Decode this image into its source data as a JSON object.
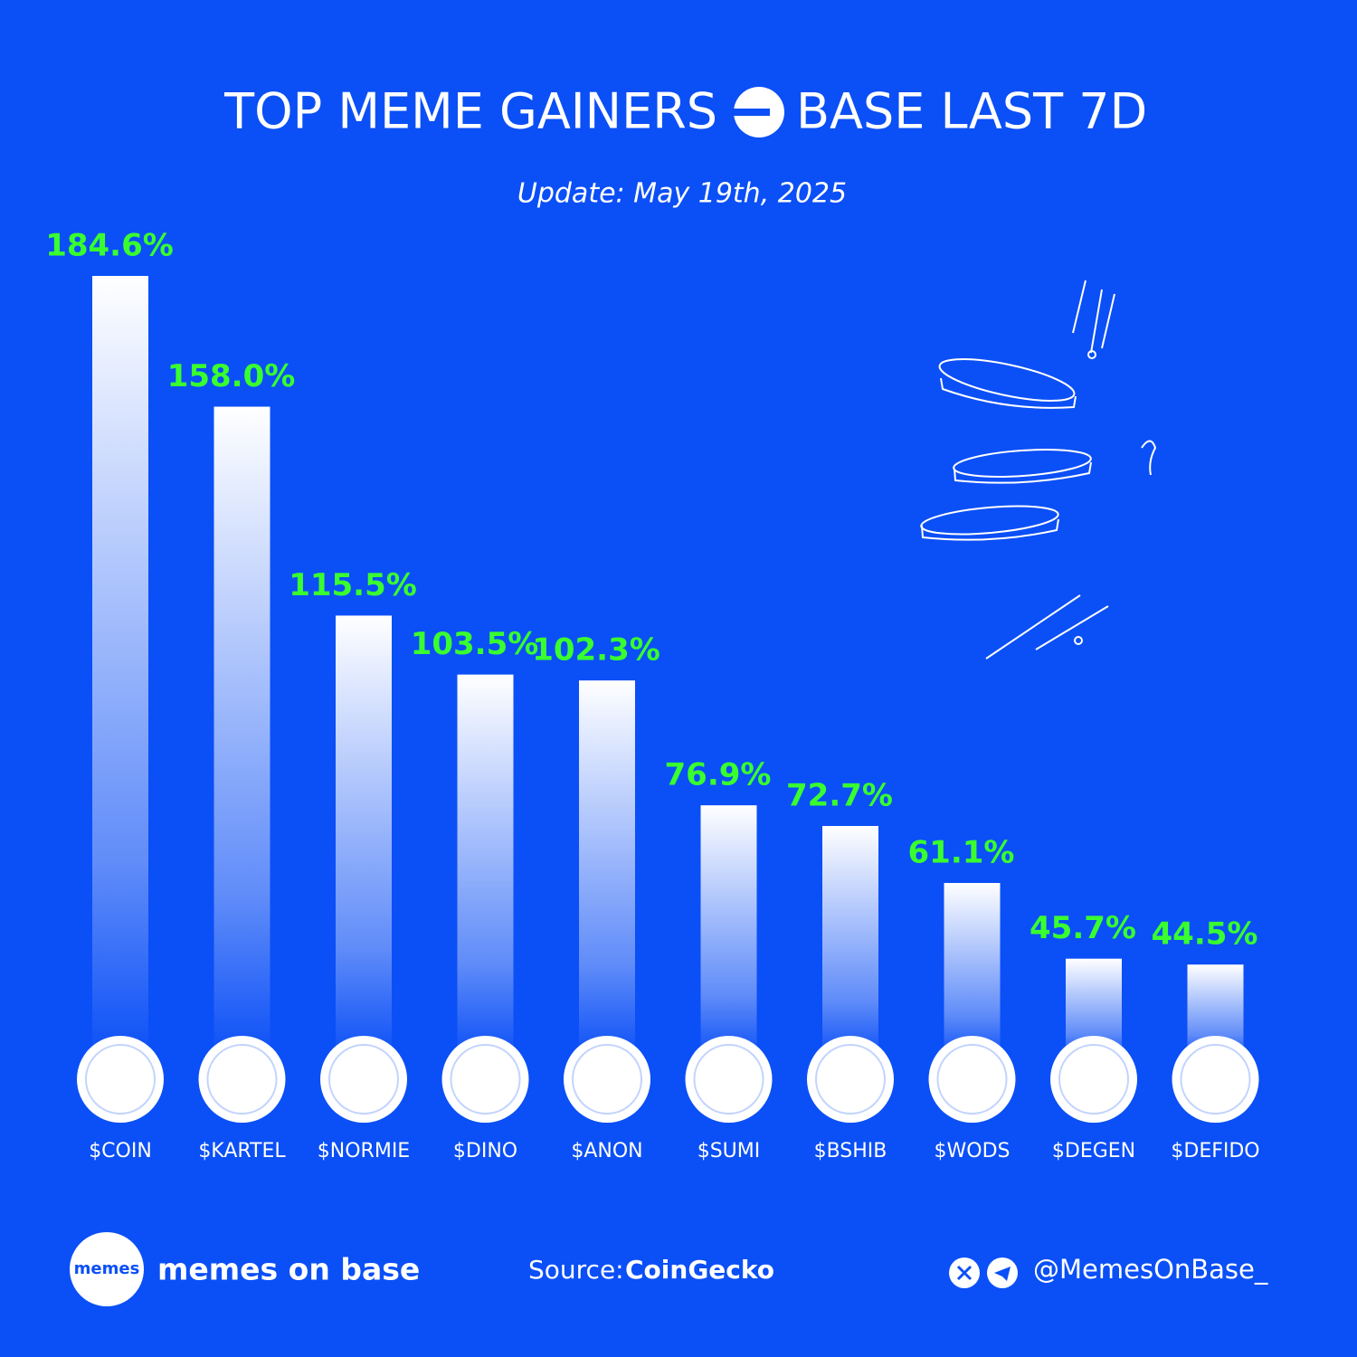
{
  "chart_data": {
    "type": "bar",
    "title_parts": [
      "TOP MEME GAINERS",
      "BASE LAST 7D"
    ],
    "subtitle": "Update: May 19th, 2025",
    "categories": [
      "$COIN",
      "$KARTEL",
      "$NORMIE",
      "$DINO",
      "$ANON",
      "$SUMI",
      "$BSHIB",
      "$WODS",
      "$DEGEN",
      "$DEFIDO"
    ],
    "values": [
      184.6,
      158.0,
      115.5,
      103.5,
      102.3,
      76.9,
      72.7,
      61.1,
      45.7,
      44.5
    ],
    "value_labels": [
      "184.6%",
      "158.0%",
      "115.5%",
      "103.5%",
      "102.3%",
      "76.9%",
      "72.7%",
      "61.1%",
      "45.7%",
      "44.5%"
    ],
    "color": "#ffffff",
    "label_color": "#39ff2e"
  },
  "footer": {
    "logo": "memes",
    "brand": "memes on base",
    "source_label": "Source:",
    "source": "CoinGecko",
    "handle": "@MemesOnBase_"
  }
}
